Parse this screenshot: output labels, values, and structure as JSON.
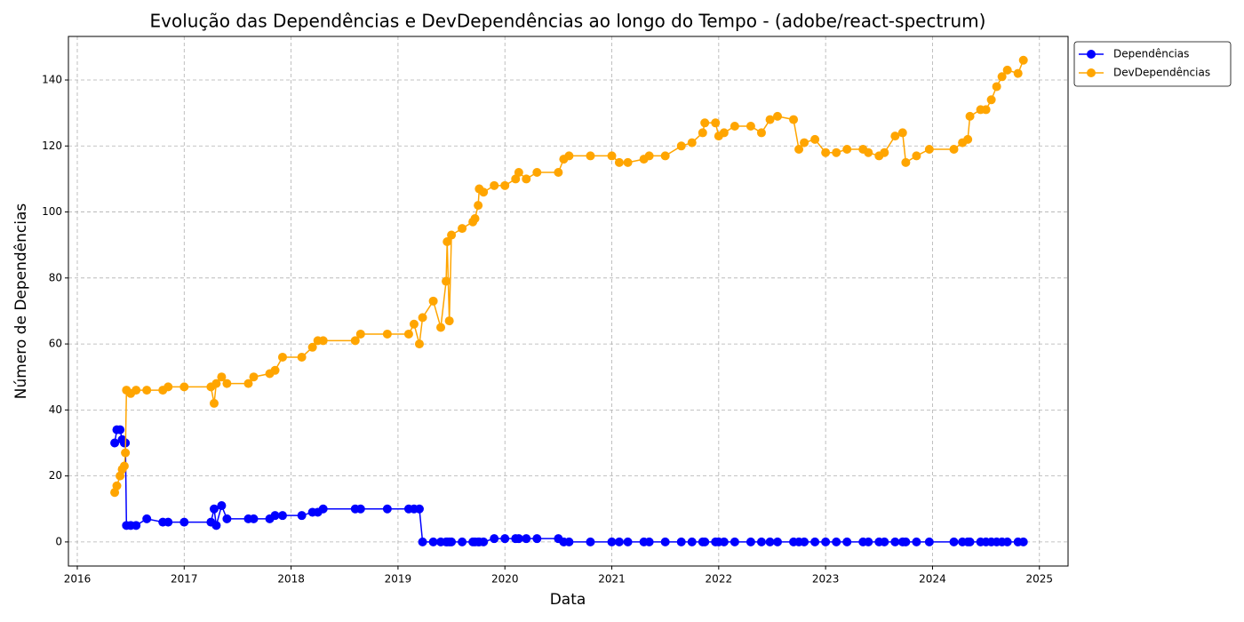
{
  "chart_data": {
    "type": "line",
    "title": "Evolução das Dependências e DevDependências ao longo do Tempo - (adobe/react-spectrum)",
    "x_label": "Data",
    "y_label": "Número de Dependências",
    "xlim": [
      2015.917,
      2025.268
    ],
    "xticks": [
      2016,
      2017,
      2018,
      2019,
      2020,
      2021,
      2022,
      2023,
      2024,
      2025
    ],
    "ylim": [
      -7.3,
      153.2
    ],
    "yticks": [
      0,
      20,
      40,
      60,
      80,
      100,
      120,
      140
    ],
    "grid": true,
    "legend": "upper right",
    "x": [
      2016.35,
      2016.37,
      2016.4,
      2016.42,
      2016.44,
      2016.45,
      2016.46,
      2016.5,
      2016.55,
      2016.65,
      2016.8,
      2016.85,
      2017.0,
      2017.25,
      2017.28,
      2017.3,
      2017.35,
      2017.4,
      2017.6,
      2017.65,
      2017.8,
      2017.85,
      2017.92,
      2018.1,
      2018.2,
      2018.25,
      2018.3,
      2018.6,
      2018.65,
      2018.9,
      2019.1,
      2019.15,
      2019.2,
      2019.23,
      2019.33,
      2019.4,
      2019.45,
      2019.46,
      2019.48,
      2019.5,
      2019.6,
      2019.7,
      2019.72,
      2019.75,
      2019.76,
      2019.8,
      2019.9,
      2020.0,
      2020.1,
      2020.13,
      2020.2,
      2020.3,
      2020.5,
      2020.55,
      2020.6,
      2020.8,
      2021.0,
      2021.07,
      2021.15,
      2021.3,
      2021.35,
      2021.5,
      2021.65,
      2021.75,
      2021.85,
      2021.87,
      2021.97,
      2022.0,
      2022.05,
      2022.15,
      2022.3,
      2022.4,
      2022.48,
      2022.55,
      2022.7,
      2022.75,
      2022.8,
      2022.9,
      2023.0,
      2023.1,
      2023.2,
      2023.35,
      2023.4,
      2023.5,
      2023.55,
      2023.65,
      2023.72,
      2023.75,
      2023.85,
      2023.97,
      2024.2,
      2024.28,
      2024.33,
      2024.35,
      2024.45,
      2024.5,
      2024.55,
      2024.6,
      2024.65,
      2024.7,
      2024.8,
      2024.85
    ],
    "series": [
      {
        "name": "Dependências",
        "color": "#0000ff",
        "values": [
          30,
          34,
          34,
          31,
          30,
          30,
          5,
          5,
          5,
          7,
          6,
          6,
          6,
          6,
          10,
          5,
          11,
          7,
          7,
          7,
          7,
          8,
          8,
          8,
          9,
          9,
          10,
          10,
          10,
          10,
          10,
          10,
          10,
          0,
          0,
          0,
          0,
          0,
          0,
          0,
          0,
          0,
          0,
          0,
          0,
          0,
          1,
          1,
          1,
          1,
          1,
          1,
          1,
          0,
          0,
          0,
          0,
          0,
          0,
          0,
          0,
          0,
          0,
          0,
          0,
          0,
          0,
          0,
          0,
          0,
          0,
          0,
          0,
          0,
          0,
          0,
          0,
          0,
          0,
          0,
          0,
          0,
          0,
          0,
          0,
          0,
          0,
          0,
          0,
          0,
          0,
          0,
          0,
          0,
          0,
          0,
          0,
          0,
          0,
          0,
          0,
          0
        ]
      },
      {
        "name": "DevDependências",
        "color": "#ffa500",
        "values": [
          15,
          17,
          20,
          22,
          23,
          27,
          46,
          45,
          46,
          46,
          46,
          47,
          47,
          47,
          42,
          48,
          50,
          48,
          48,
          50,
          51,
          52,
          56,
          56,
          59,
          61,
          61,
          61,
          63,
          63,
          63,
          66,
          60,
          68,
          73,
          65,
          79,
          91,
          67,
          93,
          95,
          97,
          98,
          102,
          107,
          106,
          108,
          108,
          110,
          112,
          110,
          112,
          112,
          116,
          117,
          117,
          117,
          115,
          115,
          116,
          117,
          117,
          120,
          121,
          124,
          127,
          127,
          123,
          124,
          126,
          126,
          124,
          128,
          129,
          128,
          119,
          121,
          122,
          118,
          118,
          119,
          119,
          118,
          117,
          118,
          123,
          124,
          115,
          117,
          119,
          119,
          121,
          122,
          129,
          131,
          131,
          134,
          138,
          141,
          143,
          142,
          146
        ]
      }
    ]
  }
}
